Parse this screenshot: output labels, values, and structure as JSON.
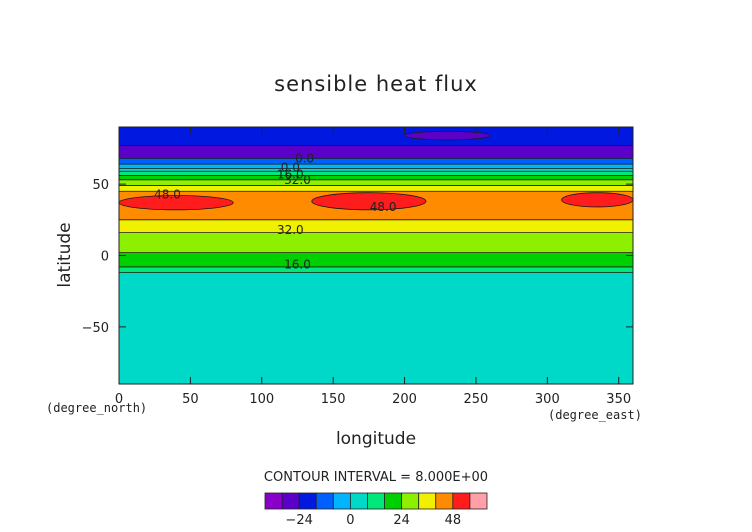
{
  "chart_data": {
    "type": "heatmap",
    "title": "sensible heat flux",
    "xlabel": "longitude",
    "ylabel": "latitude",
    "x_unit": "(degree_east)",
    "y_unit": "(degree_north)",
    "xlim": [
      0,
      360
    ],
    "ylim": [
      -90,
      90
    ],
    "x_ticks": [
      0,
      50,
      100,
      150,
      200,
      250,
      300,
      350
    ],
    "y_ticks": [
      -50,
      0,
      50
    ],
    "contour_interval_text": "CONTOUR INTERVAL = 8.000E+00",
    "colorbar": {
      "levels": [
        -32,
        -24,
        -16,
        -8,
        0,
        8,
        16,
        24,
        32,
        40,
        48,
        56
      ],
      "tick_labels": [
        -24,
        0,
        24,
        48
      ],
      "colors": [
        "#8a00c8",
        "#5a00c8",
        "#0018e0",
        "#0060ff",
        "#00b4ff",
        "#00d8c8",
        "#00e87a",
        "#00d000",
        "#8cf000",
        "#f0f000",
        "#ff8c00",
        "#ff1c1c",
        "#ffa0a8"
      ]
    },
    "bands": [
      {
        "lat_top": 90,
        "lat_bottom": 77,
        "value": -20
      },
      {
        "lat_top": 77,
        "lat_bottom": 68,
        "value": -28
      },
      {
        "lat_top": 68,
        "lat_bottom": 64,
        "value": -12
      },
      {
        "lat_top": 64,
        "lat_bottom": 61,
        "value": -4
      },
      {
        "lat_top": 61,
        "lat_bottom": 59,
        "value": 4
      },
      {
        "lat_top": 59,
        "lat_bottom": 56,
        "value": 12
      },
      {
        "lat_top": 56,
        "lat_bottom": 53,
        "value": 20
      },
      {
        "lat_top": 53,
        "lat_bottom": 49,
        "value": 28
      },
      {
        "lat_top": 49,
        "lat_bottom": 45,
        "value": 36
      },
      {
        "lat_top": 45,
        "lat_bottom": 25,
        "value": 44
      },
      {
        "lat_top": 25,
        "lat_bottom": 16,
        "value": 36
      },
      {
        "lat_top": 16,
        "lat_bottom": 2,
        "value": 28
      },
      {
        "lat_top": 2,
        "lat_bottom": -8,
        "value": 20
      },
      {
        "lat_top": -8,
        "lat_bottom": -12,
        "value": 12
      },
      {
        "lat_top": -12,
        "lat_bottom": -90,
        "value": 4
      }
    ],
    "patches": [
      {
        "lon_center": 40,
        "lat_center": 37,
        "lon_halfwidth": 40,
        "lat_halfheight": 5,
        "value": 52
      },
      {
        "lon_center": 175,
        "lat_center": 38,
        "lon_halfwidth": 40,
        "lat_halfheight": 6,
        "value": 52
      },
      {
        "lon_center": 335,
        "lat_center": 39,
        "lon_halfwidth": 25,
        "lat_halfheight": 5,
        "value": 52
      },
      {
        "lon_center": 230,
        "lat_center": 84,
        "lon_halfwidth": 30,
        "lat_halfheight": 3,
        "value": -28
      }
    ],
    "contour_labels": [
      {
        "text": "48.0",
        "lon": 34,
        "lat": 40
      },
      {
        "text": "48.0",
        "lon": 185,
        "lat": 31
      },
      {
        "text": "32.0",
        "lon": 120,
        "lat": 15
      },
      {
        "text": "16.0",
        "lon": 125,
        "lat": -9
      },
      {
        "text": "32.0",
        "lon": 125,
        "lat": 50
      },
      {
        "text": "0.0",
        "lon": 120,
        "lat": 59
      },
      {
        "text": "16.0",
        "lon": 120,
        "lat": 54
      },
      {
        "text": "0.0",
        "lon": 130,
        "lat": 65
      }
    ]
  }
}
